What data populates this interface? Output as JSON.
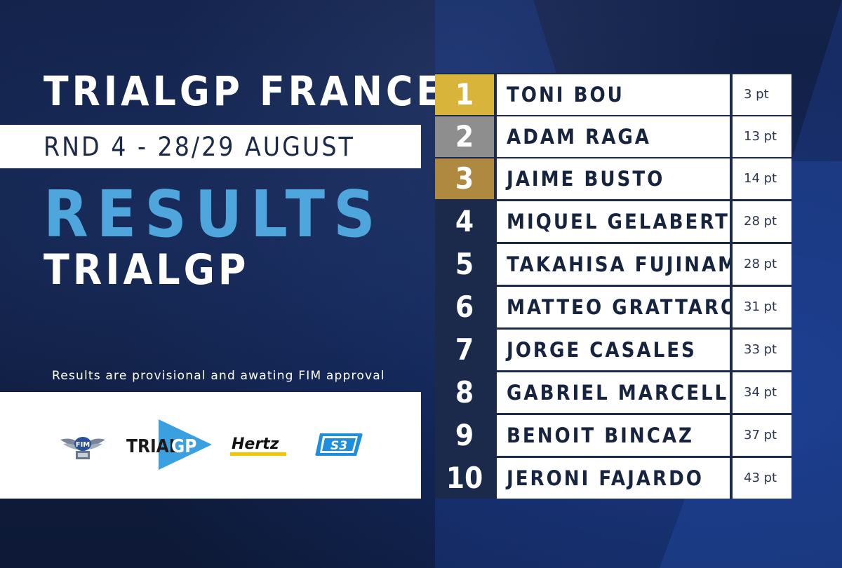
{
  "event": {
    "title": "TRIALGP FRANCE",
    "date": "RND 4 - 28/29 AUGUST",
    "heading": "RESULTS",
    "class": "TRIALGP",
    "note": "Results are provisional and awating FIM approval"
  },
  "sponsors": {
    "fim": "FIM",
    "trial_a": "TRIAL",
    "trial_b": "GP",
    "hertz": "Hertz",
    "s3": "S3"
  },
  "colors": {
    "gold": "#d9b43a",
    "silver": "#8e8e8e",
    "bronze": "#b08940",
    "accent": "#4fa6dc",
    "navy": "#1b2a4b"
  },
  "results": [
    {
      "pos": "1",
      "name": "TONI BOU",
      "pts": "3 pt"
    },
    {
      "pos": "2",
      "name": "ADAM RAGA",
      "pts": "13 pt"
    },
    {
      "pos": "3",
      "name": "JAIME BUSTO",
      "pts": "14 pt"
    },
    {
      "pos": "4",
      "name": "MIQUEL GELABERT",
      "pts": "28 pt"
    },
    {
      "pos": "5",
      "name": "TAKAHISA FUJINAMI",
      "pts": "28 pt"
    },
    {
      "pos": "6",
      "name": "MATTEO GRATTAROLA",
      "pts": "31 pt"
    },
    {
      "pos": "7",
      "name": "JORGE CASALES",
      "pts": "33 pt"
    },
    {
      "pos": "8",
      "name": "GABRIEL MARCELLI",
      "pts": "34 pt"
    },
    {
      "pos": "9",
      "name": "BENOIT BINCAZ",
      "pts": "37 pt"
    },
    {
      "pos": "10",
      "name": "JERONI FAJARDO",
      "pts": "43 pt"
    }
  ]
}
